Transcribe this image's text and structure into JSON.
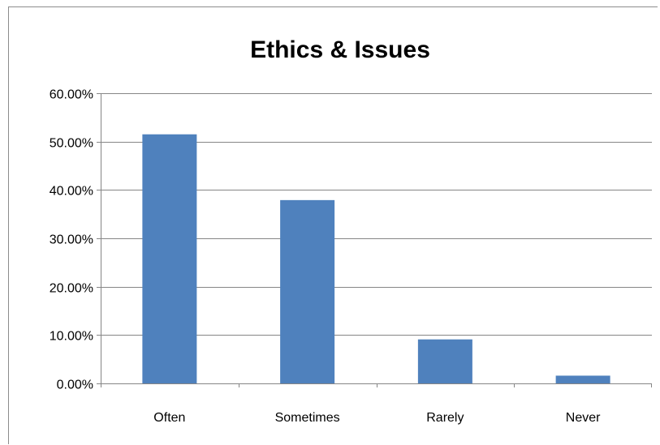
{
  "chart_data": {
    "type": "bar",
    "title": "Ethics & Issues",
    "xlabel": "",
    "ylabel": "",
    "categories": [
      "Often",
      "Sometimes",
      "Rarely",
      "Never"
    ],
    "values": [
      51.5,
      37.9,
      9.1,
      1.6
    ],
    "ylim": [
      0,
      60
    ],
    "yticks": [
      0,
      10,
      20,
      30,
      40,
      50,
      60
    ],
    "ytick_labels": [
      "0.00%",
      "10.00%",
      "20.00%",
      "30.00%",
      "40.00%",
      "50.00%",
      "60.00%"
    ],
    "grid": true,
    "legend": "none",
    "bar_color": "#4f81bd",
    "grid_color": "#868686"
  }
}
